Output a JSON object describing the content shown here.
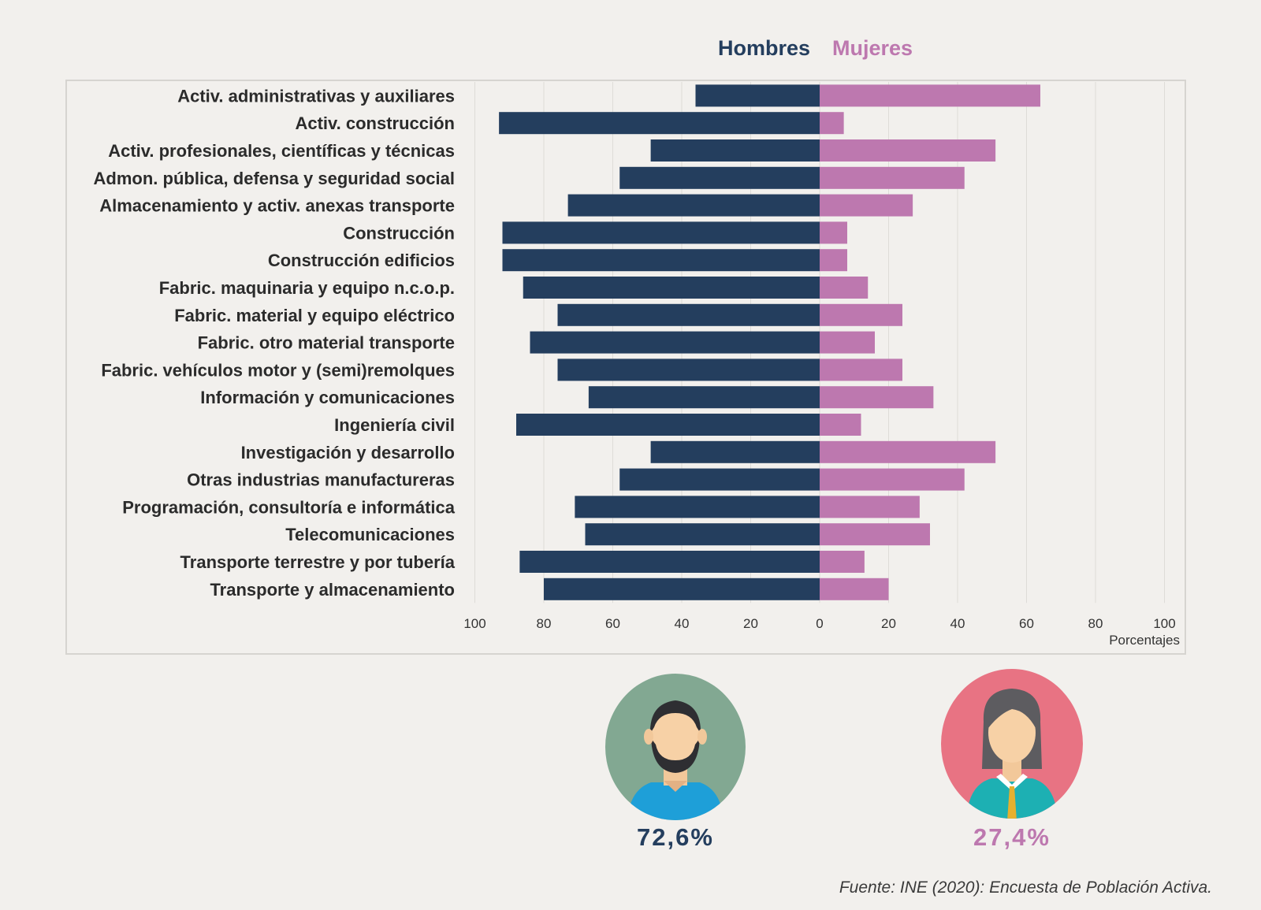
{
  "legend": {
    "men": "Hombres",
    "women": "Mujeres"
  },
  "colors": {
    "men": "#243e5e",
    "women": "#bd78af",
    "men_avatar_bg": "#82a892",
    "women_avatar_bg": "#e87383"
  },
  "chart_data": {
    "type": "bar",
    "orientation": "horizontal-diverging",
    "categories": [
      "Activ. administrativas y auxiliares",
      "Activ. construcción",
      "Activ. profesionales, científicas y técnicas",
      "Admon. pública, defensa y seguridad social",
      "Almacenamiento y activ. anexas transporte",
      "Construcción",
      "Construcción edificios",
      "Fabric. maquinaria y equipo n.c.o.p.",
      "Fabric. material y equipo eléctrico",
      "Fabric. otro material transporte",
      "Fabric. vehículos motor y (semi)remolques",
      "Información y comunicaciones",
      "Ingeniería civil",
      "Investigación y desarrollo",
      "Otras industrias manufactureras",
      "Programación, consultoría e informática",
      "Telecomunicaciones",
      "Transporte terrestre y por tubería",
      "Transporte y almacenamiento"
    ],
    "series": [
      {
        "name": "Hombres",
        "values": [
          36,
          93,
          49,
          58,
          73,
          92,
          92,
          86,
          76,
          84,
          76,
          67,
          88,
          49,
          58,
          71,
          68,
          87,
          80
        ]
      },
      {
        "name": "Mujeres",
        "values": [
          64,
          7,
          51,
          42,
          27,
          8,
          8,
          14,
          24,
          16,
          24,
          33,
          12,
          51,
          42,
          29,
          32,
          13,
          20
        ]
      }
    ],
    "xticks": [
      "100",
      "80",
      "60",
      "40",
      "20",
      "0",
      "20",
      "40",
      "60",
      "80",
      "100"
    ],
    "xlim": [
      -100,
      100
    ],
    "xlabel": "Porcentajes",
    "grid": true
  },
  "summary": {
    "men_pct": "72,6%",
    "women_pct": "27,4%"
  },
  "source": "Fuente: INE (2020): Encuesta de Población Activa."
}
